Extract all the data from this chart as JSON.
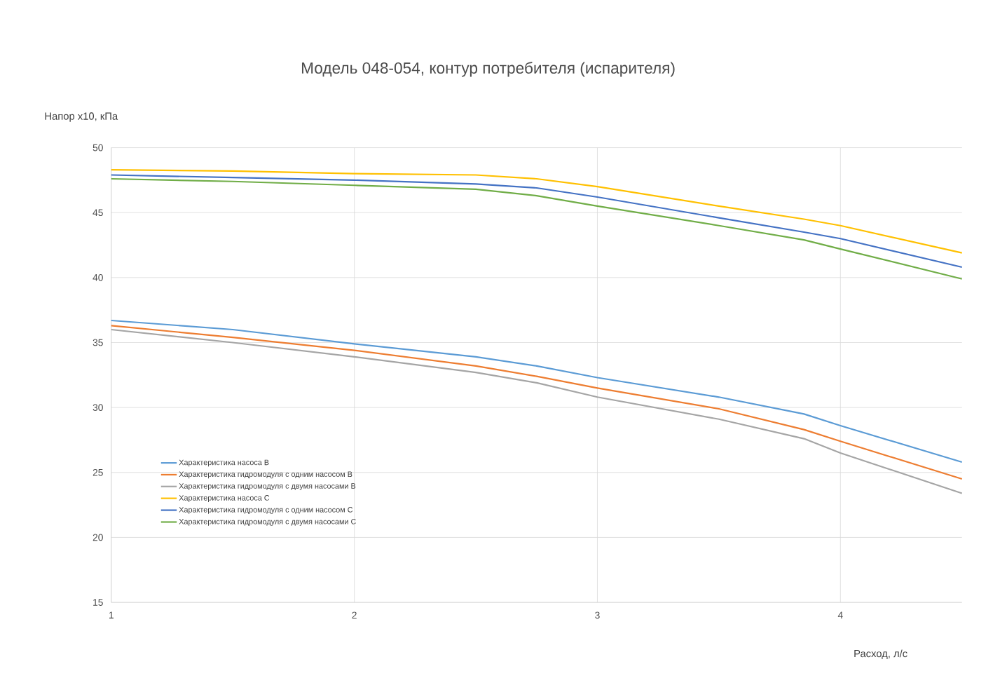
{
  "chart_data": {
    "type": "line",
    "title": "Модель 048-054, контур потребителя (испарителя)",
    "xlabel": "Расход, л/с",
    "ylabel": "Напор x10, кПа",
    "x": [
      1,
      1.5,
      2,
      2.5,
      2.75,
      3,
      3.5,
      3.85,
      4,
      4.5
    ],
    "series": [
      {
        "name": "Характеристика насоса B",
        "color": "#5b9bd5",
        "values": [
          36.7,
          36.0,
          34.9,
          33.9,
          33.2,
          32.3,
          30.8,
          29.5,
          28.6,
          25.8
        ]
      },
      {
        "name": "Характеристика гидромодуля с одним насосом B",
        "color": "#ed7d31",
        "values": [
          36.3,
          35.4,
          34.4,
          33.2,
          32.4,
          31.5,
          29.9,
          28.3,
          27.4,
          24.5
        ]
      },
      {
        "name": "Характеристика гидромодуля с двумя насосами B",
        "color": "#a5a5a5",
        "values": [
          36.0,
          35.0,
          33.9,
          32.7,
          31.9,
          30.8,
          29.1,
          27.6,
          26.5,
          23.4
        ]
      },
      {
        "name": "Характеристика насоса C",
        "color": "#ffc000",
        "values": [
          48.3,
          48.2,
          48.0,
          47.9,
          47.6,
          47.0,
          45.5,
          44.5,
          44.0,
          41.9
        ]
      },
      {
        "name": "Характеристика гидромодуля с одним насосом C",
        "color": "#4472c4",
        "values": [
          47.9,
          47.7,
          47.5,
          47.2,
          46.9,
          46.2,
          44.6,
          43.5,
          43.0,
          40.8
        ]
      },
      {
        "name": "Характеристика гидромодуля с двумя насосами C",
        "color": "#70ad47",
        "values": [
          47.6,
          47.4,
          47.1,
          46.8,
          46.3,
          45.5,
          44.0,
          42.9,
          42.2,
          39.9
        ]
      }
    ],
    "xlim": [
      1,
      4.5
    ],
    "xticks": [
      1,
      2,
      3,
      4
    ],
    "ylim": [
      15,
      50
    ],
    "yticks": [
      15,
      20,
      25,
      30,
      35,
      40,
      45,
      50
    ],
    "grid": true,
    "legend": "bottom left",
    "marker": "none",
    "line_style": "solid"
  }
}
